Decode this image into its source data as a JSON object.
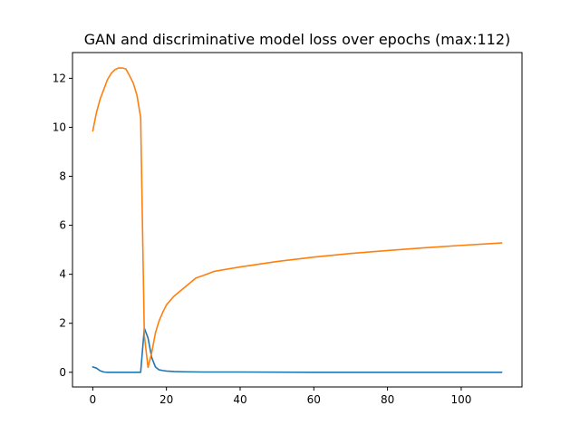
{
  "chart_data": {
    "type": "line",
    "title": "GAN and discriminative model loss over epochs (max:112)",
    "xlabel": "",
    "ylabel": "",
    "xlim": [
      -5.5,
      116.5
    ],
    "ylim": [
      -0.6,
      13.05
    ],
    "x_ticks": [
      0,
      20,
      40,
      60,
      80,
      100
    ],
    "y_ticks": [
      0,
      2,
      4,
      6,
      8,
      10,
      12
    ],
    "grid": false,
    "legend": "none",
    "series": [
      {
        "color": "#1f77b4",
        "points": [
          [
            0,
            0.22
          ],
          [
            1,
            0.17
          ],
          [
            2,
            0.06
          ],
          [
            3,
            0.01
          ],
          [
            4,
            0.0
          ],
          [
            6,
            0.0
          ],
          [
            8,
            0.0
          ],
          [
            10,
            0.0
          ],
          [
            12,
            0.0
          ],
          [
            13,
            0.0
          ],
          [
            14,
            1.8
          ],
          [
            15,
            1.4
          ],
          [
            16,
            0.6
          ],
          [
            17,
            0.22
          ],
          [
            18,
            0.1
          ],
          [
            19,
            0.07
          ],
          [
            20,
            0.05
          ],
          [
            22,
            0.03
          ],
          [
            25,
            0.02
          ],
          [
            30,
            0.01
          ],
          [
            40,
            0.01
          ],
          [
            60,
            0.0
          ],
          [
            80,
            0.0
          ],
          [
            100,
            0.0
          ],
          [
            111,
            0.0
          ]
        ]
      },
      {
        "color": "#ff7f0e",
        "points": [
          [
            0,
            9.85
          ],
          [
            1,
            10.6
          ],
          [
            2,
            11.15
          ],
          [
            3,
            11.55
          ],
          [
            4,
            11.95
          ],
          [
            5,
            12.2
          ],
          [
            6,
            12.35
          ],
          [
            7,
            12.42
          ],
          [
            8,
            12.42
          ],
          [
            9,
            12.38
          ],
          [
            10,
            12.1
          ],
          [
            11,
            11.8
          ],
          [
            12,
            11.3
          ],
          [
            13,
            10.4
          ],
          [
            14,
            1.5
          ],
          [
            15,
            0.2
          ],
          [
            16,
            0.8
          ],
          [
            17,
            1.6
          ],
          [
            18,
            2.1
          ],
          [
            19,
            2.45
          ],
          [
            20,
            2.75
          ],
          [
            22,
            3.1
          ],
          [
            24,
            3.35
          ],
          [
            26,
            3.6
          ],
          [
            28,
            3.85
          ],
          [
            30,
            3.95
          ],
          [
            33,
            4.12
          ],
          [
            40,
            4.3
          ],
          [
            50,
            4.52
          ],
          [
            60,
            4.7
          ],
          [
            70,
            4.85
          ],
          [
            80,
            4.97
          ],
          [
            90,
            5.08
          ],
          [
            100,
            5.18
          ],
          [
            111,
            5.28
          ]
        ]
      }
    ]
  }
}
